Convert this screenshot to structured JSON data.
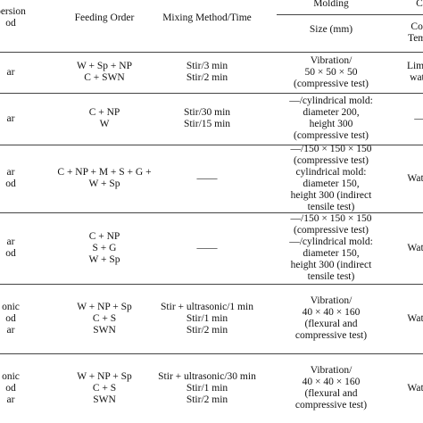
{
  "header": {
    "method": [
      "persion",
      "od"
    ],
    "feeding": [
      "Feeding Order"
    ],
    "mixing": [
      "Mixing Method/Time"
    ],
    "molding": [
      "Molding"
    ],
    "size": [
      "Size (mm)"
    ],
    "curing_group": [
      "C"
    ],
    "curing": [
      "Con",
      "Temp"
    ]
  },
  "rows": [
    [
      [
        "ar"
      ],
      [
        "W + Sp + NP",
        "C + SWN"
      ],
      [
        "Stir/3 min",
        "Stir/2 min"
      ],
      [
        "Vibration/",
        "50 × 50 × 50",
        "(compressive test)"
      ],
      [
        "Lime-",
        "wate"
      ]
    ],
    [
      [
        "ar"
      ],
      [
        "C + NP",
        "W"
      ],
      [
        "Stir/30 min",
        "Stir/15 min"
      ],
      [
        "—/cylindrical mold:",
        "diameter 200,",
        "height 300",
        "(compressive test)"
      ],
      [
        "—"
      ]
    ],
    [
      [
        "ar",
        "od"
      ],
      [
        "C + NP + M + S + G +",
        "W + Sp"
      ],
      [
        "——"
      ],
      [
        "—/150 × 150 × 150",
        "(compressive test)",
        "cylindrical mold:",
        "diameter 150,",
        "height 300 (indirect",
        "tensile test)"
      ],
      [
        "Water"
      ]
    ],
    [
      [
        "ar",
        "od"
      ],
      [
        "C + NP",
        "S + G",
        "W + Sp"
      ],
      [
        "——"
      ],
      [
        "—/150 × 150 × 150",
        "(compressive test)",
        "—/cylindrical mold:",
        "diameter 150,",
        "height 300 (indirect",
        "tensile test)"
      ],
      [
        "Water"
      ]
    ],
    [
      [
        "onic",
        "od",
        "ar"
      ],
      [
        "W + NP + Sp",
        "C + S",
        "SWN"
      ],
      [
        "Stir + ultrasonic/1 min",
        "Stir/1 min",
        "Stir/2 min"
      ],
      [
        "Vibration/",
        "40 × 40 × 160",
        "(flexural and",
        "compressive test)"
      ],
      [
        "Water"
      ]
    ],
    [
      [
        "onic",
        "od",
        "ar"
      ],
      [
        "W + NP + Sp",
        "C + S",
        "SWN"
      ],
      [
        "Stir + ultrasonic/30 min",
        "Stir/1 min",
        "Stir/2 min"
      ],
      [
        "Vibration/",
        "40 × 40 × 160",
        "(flexural and",
        "compressive test)"
      ],
      [
        "Water"
      ]
    ]
  ]
}
